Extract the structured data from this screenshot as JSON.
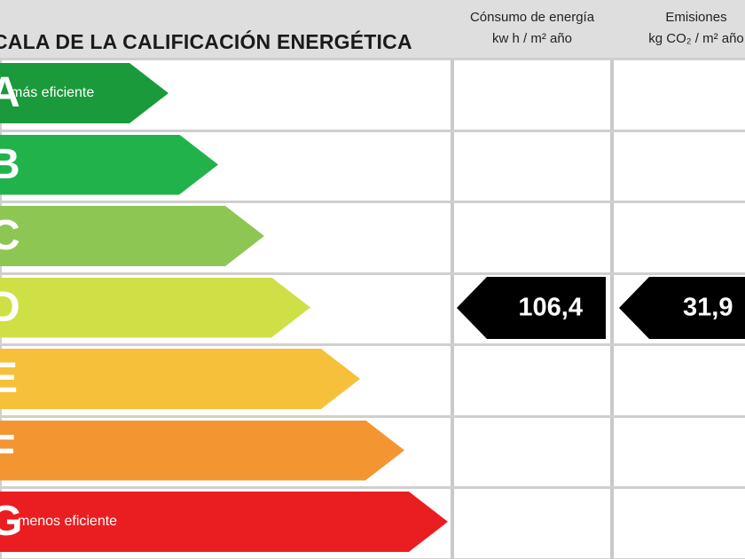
{
  "chart_data": {
    "type": "energy-rating-scale",
    "title": "CALA DE LA CALIFICACIÓN ENERGÉTICA",
    "columns": {
      "energy": {
        "title": "Cónsumo de energía",
        "unit": "kw h / m² año"
      },
      "emissions": {
        "title": "Emisiones",
        "unit": "kg CO₂ / m² año"
      }
    },
    "bands": [
      {
        "letter": "A",
        "note": "más eficiente",
        "color": "#1a9a3a"
      },
      {
        "letter": "B",
        "note": "",
        "color": "#22b24c"
      },
      {
        "letter": "C",
        "note": "",
        "color": "#8dc652"
      },
      {
        "letter": "D",
        "note": "",
        "color": "#cfe046"
      },
      {
        "letter": "E",
        "note": "",
        "color": "#f7c03a"
      },
      {
        "letter": "F",
        "note": "",
        "color": "#f39530"
      },
      {
        "letter": "G",
        "note": "menos eficiente",
        "color": "#ea1d21"
      }
    ],
    "rating": {
      "band": "D",
      "energy_value": "106,4",
      "emissions_value": "31,9"
    }
  }
}
